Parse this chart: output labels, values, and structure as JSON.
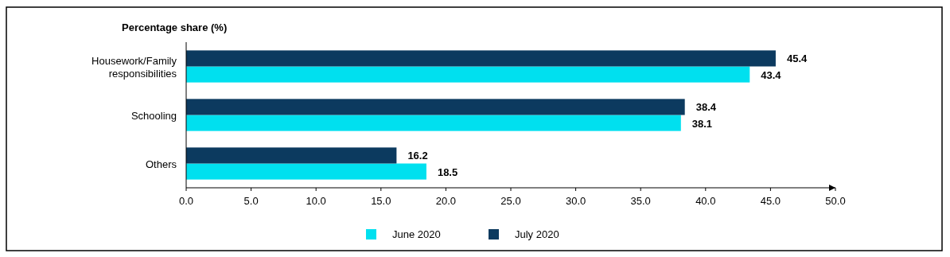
{
  "chart_data": {
    "type": "bar",
    "orientation": "horizontal",
    "xlabel": "Percentage share (%)",
    "categories": [
      "Housework/Family responsibilities",
      "Schooling",
      "Others"
    ],
    "series": [
      {
        "name": "June 2020",
        "color": "#00e0ef",
        "values": [
          43.4,
          38.1,
          18.5
        ]
      },
      {
        "name": "July 2020",
        "color": "#0c3a5f",
        "values": [
          45.4,
          38.4,
          16.2
        ]
      }
    ],
    "xlim": [
      0,
      50
    ],
    "xticks": [
      {
        "value": 0,
        "label": "0.0"
      },
      {
        "value": 5,
        "label": "5.0"
      },
      {
        "value": 10,
        "label": "10.0"
      },
      {
        "value": 15,
        "label": "15.0"
      },
      {
        "value": 20,
        "label": "20.0"
      },
      {
        "value": 25,
        "label": "25.0"
      },
      {
        "value": 30,
        "label": "30.0"
      },
      {
        "value": 35,
        "label": "35.0"
      },
      {
        "value": 40,
        "label": "40.0"
      },
      {
        "value": 45,
        "label": "45.0"
      },
      {
        "value": 50,
        "label": "50.0"
      }
    ],
    "data_labels": true,
    "grid": false,
    "legend": "bottom"
  }
}
